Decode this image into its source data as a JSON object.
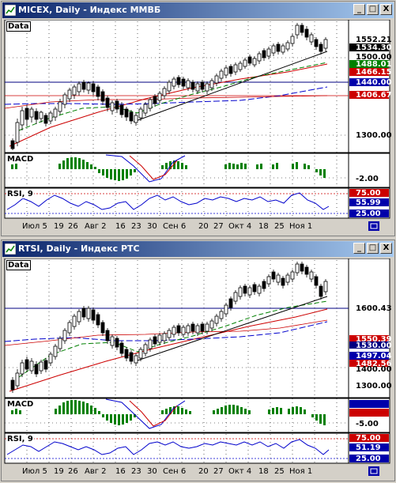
{
  "windows": [
    {
      "title": "MICEX, Daily - Индекс ММВБ",
      "panel_data_label": "Data",
      "panel_macd_label": "MACD",
      "panel_rsi_label": "RSI, 9",
      "price_labels": [
        "1552.21",
        "1534.30",
        "1500.00",
        "1488.01",
        "1466.15",
        "1440.00",
        "1406.67",
        "1300.00"
      ],
      "macd_label": "-2.00",
      "rsi_labels": [
        "75.00",
        "55.99",
        "25.00"
      ],
      "colors": {
        "black": "#000000",
        "green": "#008000",
        "red": "#cc0000",
        "blue": "#0000cc",
        "redlevel": "#cc0000",
        "bluelevel": "#0000aa"
      }
    },
    {
      "title": "RTSI, Daily - Индекс РТС",
      "panel_data_label": "Data",
      "panel_macd_label": "MACD",
      "panel_rsi_label": "RSI, 9",
      "price_labels": [
        "1600.43",
        "1550.39",
        "1530.00",
        "1497.04",
        "1482.56",
        "1400.00",
        "1300.00"
      ],
      "macd_label": "-5.00",
      "rsi_labels": [
        "75.00",
        "51.19",
        "25.00"
      ],
      "colors": {
        "black": "#000000",
        "green": "#008000",
        "red": "#cc0000",
        "blue": "#0000cc"
      }
    }
  ],
  "date_axis": [
    "Июл 5",
    "19",
    "26",
    "Авг 2",
    "16",
    "23",
    "30",
    "Сен 6",
    "20",
    "27",
    "Окт 4",
    "18",
    "25",
    "Ноя 1"
  ],
  "buttons": {
    "minimize": "_",
    "maximize": "□",
    "close": "X"
  }
}
